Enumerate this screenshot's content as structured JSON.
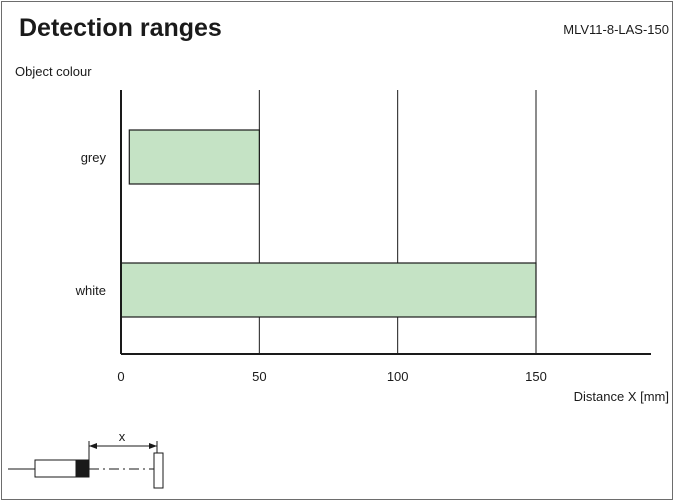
{
  "header": {
    "title": "Detection ranges",
    "model": "MLV11-8-LAS-150"
  },
  "chart_data": {
    "type": "bar",
    "orientation": "horizontal",
    "title": "Detection ranges",
    "ylabel": "Object colour",
    "xlabel": "Distance X [mm]",
    "categories": [
      "grey",
      "white"
    ],
    "ranges": [
      {
        "category": "grey",
        "start": 3,
        "end": 50
      },
      {
        "category": "white",
        "start": 0,
        "end": 150
      }
    ],
    "xticks": [
      0,
      50,
      100,
      150
    ],
    "xlim": [
      0,
      190
    ],
    "grid": true,
    "bar_color": "#c5e3c5"
  },
  "diagram": {
    "dimension_label": "x"
  }
}
